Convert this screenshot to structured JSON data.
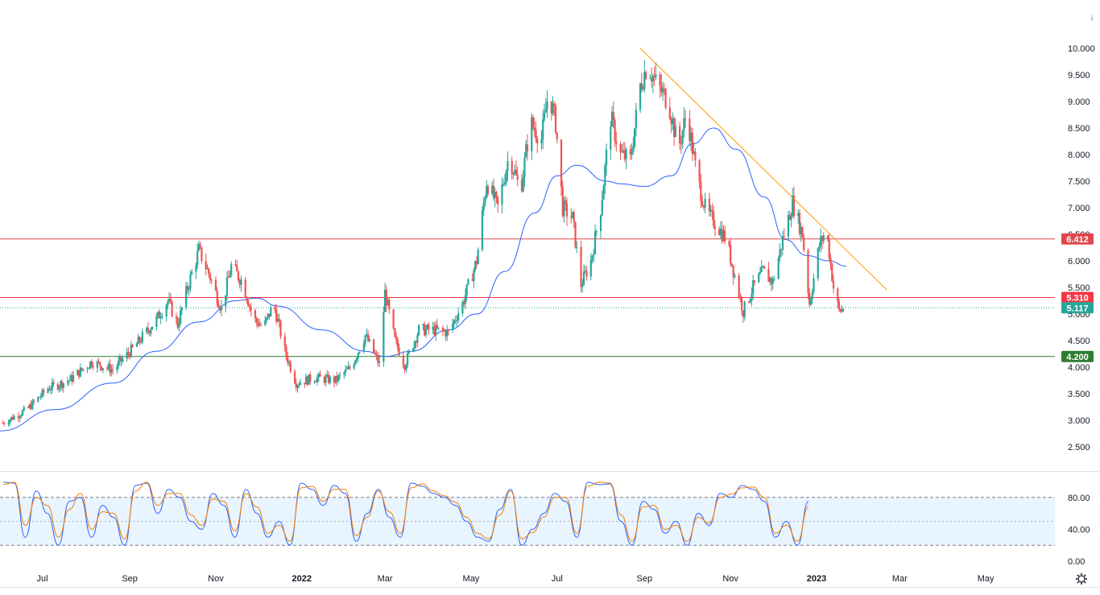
{
  "chart_data": [
    {
      "type": "candlestick",
      "title": "",
      "ylim": [
        2.2,
        10.3
      ],
      "y_ticks": [
        "10.000",
        "9.500",
        "9.000",
        "8.500",
        "8.000",
        "7.500",
        "7.000",
        "6.500",
        "6.000",
        "5.500",
        "5.000",
        "4.500",
        "4.000",
        "3.500",
        "3.000",
        "2.500"
      ],
      "x_ticks": [
        "Jul",
        "Sep",
        "Nov",
        "2022",
        "Mar",
        "May",
        "Jul",
        "Sep",
        "Nov",
        "2023",
        "Mar",
        "May"
      ],
      "price_path": [
        {
          "x": "2021-06-03",
          "y": 2.95
        },
        {
          "x": "2021-06-20",
          "y": 3.2
        },
        {
          "x": "2021-07-05",
          "y": 3.6
        },
        {
          "x": "2021-07-20",
          "y": 3.75
        },
        {
          "x": "2021-08-05",
          "y": 4.1
        },
        {
          "x": "2021-08-20",
          "y": 3.95
        },
        {
          "x": "2021-09-05",
          "y": 4.4
        },
        {
          "x": "2021-09-20",
          "y": 4.9
        },
        {
          "x": "2021-09-28",
          "y": 5.25
        },
        {
          "x": "2021-10-05",
          "y": 4.8
        },
        {
          "x": "2021-10-12",
          "y": 5.5
        },
        {
          "x": "2021-10-20",
          "y": 6.2
        },
        {
          "x": "2021-10-28",
          "y": 5.7
        },
        {
          "x": "2021-11-05",
          "y": 5.1
        },
        {
          "x": "2021-11-12",
          "y": 5.9
        },
        {
          "x": "2021-11-20",
          "y": 5.6
        },
        {
          "x": "2021-11-28",
          "y": 4.9
        },
        {
          "x": "2021-12-05",
          "y": 4.75
        },
        {
          "x": "2021-12-12",
          "y": 5.2
        },
        {
          "x": "2021-12-20",
          "y": 4.3
        },
        {
          "x": "2021-12-28",
          "y": 3.7
        },
        {
          "x": "2022-01-10",
          "y": 3.8
        },
        {
          "x": "2022-01-25",
          "y": 3.75
        },
        {
          "x": "2022-02-05",
          "y": 4.0
        },
        {
          "x": "2022-02-15",
          "y": 4.6
        },
        {
          "x": "2022-02-25",
          "y": 4.05
        },
        {
          "x": "2022-03-01",
          "y": 5.4
        },
        {
          "x": "2022-03-08",
          "y": 4.5
        },
        {
          "x": "2022-03-15",
          "y": 4.05
        },
        {
          "x": "2022-03-25",
          "y": 4.7
        },
        {
          "x": "2022-04-05",
          "y": 4.7
        },
        {
          "x": "2022-04-15",
          "y": 4.65
        },
        {
          "x": "2022-04-25",
          "y": 5.2
        },
        {
          "x": "2022-05-05",
          "y": 6.0
        },
        {
          "x": "2022-05-12",
          "y": 7.5
        },
        {
          "x": "2022-05-20",
          "y": 7.0
        },
        {
          "x": "2022-05-28",
          "y": 8.0
        },
        {
          "x": "2022-06-05",
          "y": 7.3
        },
        {
          "x": "2022-06-12",
          "y": 8.6
        },
        {
          "x": "2022-06-20",
          "y": 8.3
        },
        {
          "x": "2022-06-25",
          "y": 9.2
        },
        {
          "x": "2022-06-30",
          "y": 8.6
        },
        {
          "x": "2022-07-05",
          "y": 7.0
        },
        {
          "x": "2022-07-12",
          "y": 6.8
        },
        {
          "x": "2022-07-18",
          "y": 5.55
        },
        {
          "x": "2022-07-25",
          "y": 6.0
        },
        {
          "x": "2022-08-01",
          "y": 7.0
        },
        {
          "x": "2022-08-08",
          "y": 8.7
        },
        {
          "x": "2022-08-15",
          "y": 8.0
        },
        {
          "x": "2022-08-22",
          "y": 7.9
        },
        {
          "x": "2022-08-29",
          "y": 9.3
        },
        {
          "x": "2022-09-03",
          "y": 9.7
        },
        {
          "x": "2022-09-10",
          "y": 9.3
        },
        {
          "x": "2022-09-18",
          "y": 9.0
        },
        {
          "x": "2022-09-25",
          "y": 8.1
        },
        {
          "x": "2022-10-01",
          "y": 8.8
        },
        {
          "x": "2022-10-08",
          "y": 7.6
        },
        {
          "x": "2022-10-15",
          "y": 6.9
        },
        {
          "x": "2022-10-22",
          "y": 6.7
        },
        {
          "x": "2022-10-29",
          "y": 6.4
        },
        {
          "x": "2022-11-05",
          "y": 5.6
        },
        {
          "x": "2022-11-10",
          "y": 5.05
        },
        {
          "x": "2022-11-17",
          "y": 5.5
        },
        {
          "x": "2022-11-24",
          "y": 5.8
        },
        {
          "x": "2022-12-01",
          "y": 5.6
        },
        {
          "x": "2022-12-08",
          "y": 6.4
        },
        {
          "x": "2022-12-15",
          "y": 7.1
        },
        {
          "x": "2022-12-22",
          "y": 6.5
        },
        {
          "x": "2022-12-27",
          "y": 5.2
        },
        {
          "x": "2023-01-03",
          "y": 6.3
        },
        {
          "x": "2023-01-08",
          "y": 6.6
        },
        {
          "x": "2023-01-13",
          "y": 5.5
        },
        {
          "x": "2023-01-17",
          "y": 5.05
        },
        {
          "x": "2023-01-21",
          "y": 5.12
        }
      ],
      "moving_average": [
        {
          "x": "2021-06-01",
          "y": 2.8
        },
        {
          "x": "2021-07-10",
          "y": 3.2
        },
        {
          "x": "2021-08-20",
          "y": 3.7
        },
        {
          "x": "2021-09-20",
          "y": 4.3
        },
        {
          "x": "2021-10-20",
          "y": 4.85
        },
        {
          "x": "2021-11-15",
          "y": 5.25
        },
        {
          "x": "2021-11-30",
          "y": 5.3
        },
        {
          "x": "2021-12-15",
          "y": 5.15
        },
        {
          "x": "2022-01-15",
          "y": 4.7
        },
        {
          "x": "2022-02-15",
          "y": 4.3
        },
        {
          "x": "2022-03-01",
          "y": 4.2
        },
        {
          "x": "2022-03-20",
          "y": 4.3
        },
        {
          "x": "2022-04-15",
          "y": 4.7
        },
        {
          "x": "2022-05-05",
          "y": 5.0
        },
        {
          "x": "2022-05-25",
          "y": 5.8
        },
        {
          "x": "2022-06-15",
          "y": 6.9
        },
        {
          "x": "2022-07-01",
          "y": 7.6
        },
        {
          "x": "2022-07-15",
          "y": 7.8
        },
        {
          "x": "2022-08-05",
          "y": 7.5
        },
        {
          "x": "2022-08-15",
          "y": 7.45
        },
        {
          "x": "2022-09-01",
          "y": 7.4
        },
        {
          "x": "2022-09-20",
          "y": 7.6
        },
        {
          "x": "2022-10-05",
          "y": 8.2
        },
        {
          "x": "2022-10-20",
          "y": 8.5
        },
        {
          "x": "2022-11-05",
          "y": 8.1
        },
        {
          "x": "2022-11-25",
          "y": 7.2
        },
        {
          "x": "2022-12-10",
          "y": 6.4
        },
        {
          "x": "2022-12-25",
          "y": 6.1
        },
        {
          "x": "2023-01-10",
          "y": 6.0
        },
        {
          "x": "2023-01-22",
          "y": 5.9
        }
      ],
      "trendline": {
        "from": {
          "x": "2022-08-29",
          "y": 10.0
        },
        "to": {
          "x": "2023-02-20",
          "y": 5.45
        }
      },
      "horizontal_levels": [
        {
          "value": 6.412,
          "label": "6.412",
          "color": "#e0474c"
        },
        {
          "value": 5.31,
          "label": "5.310",
          "color": "#f23645"
        },
        {
          "value": 4.2,
          "label": "4.200",
          "color": "#2e7d32"
        }
      ],
      "last_price": {
        "value": 5.117,
        "label": "5.117",
        "color": "#26a69a"
      }
    },
    {
      "type": "line",
      "title": "",
      "ylim": [
        0,
        100
      ],
      "y_ticks": [
        "80.00",
        "40.00",
        "0.00"
      ],
      "bands": {
        "upper": 80,
        "lower": 20,
        "middle": 50
      },
      "series": [
        {
          "values": [
            99,
            98,
            30,
            88,
            60,
            20,
            75,
            80,
            30,
            70,
            55,
            20,
            95,
            98,
            60,
            90,
            80,
            50,
            40,
            85,
            70,
            30,
            90,
            60,
            30,
            50,
            20,
            98,
            90,
            70,
            95,
            85,
            25,
            60,
            90,
            55,
            30,
            98,
            94,
            85,
            80,
            70,
            50,
            30,
            25,
            65,
            90,
            20,
            40,
            60,
            85,
            75,
            30,
            99,
            96,
            97,
            50,
            20,
            75,
            65,
            35,
            50,
            20,
            60,
            45,
            85,
            80,
            95,
            90,
            75,
            30,
            50,
            20,
            75
          ]
        },
        {
          "values": [
            96,
            99,
            45,
            80,
            70,
            30,
            65,
            85,
            40,
            62,
            60,
            28,
            88,
            99,
            70,
            85,
            85,
            58,
            45,
            78,
            75,
            38,
            85,
            68,
            35,
            45,
            25,
            92,
            94,
            75,
            90,
            90,
            32,
            55,
            88,
            62,
            35,
            92,
            97,
            88,
            82,
            74,
            55,
            35,
            28,
            58,
            88,
            28,
            36,
            55,
            80,
            80,
            35,
            94,
            99,
            98,
            58,
            25,
            68,
            70,
            40,
            45,
            25,
            55,
            48,
            80,
            84,
            92,
            93,
            80,
            35,
            45,
            25,
            68
          ]
        }
      ]
    }
  ]
}
